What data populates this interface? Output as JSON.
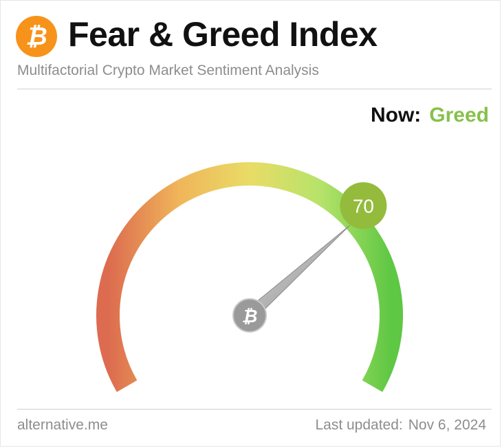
{
  "header": {
    "logo_symbol": "₿",
    "title": "Fear & Greed Index",
    "subtitle": "Multifactorial Crypto Market Sentiment Analysis"
  },
  "status": {
    "now_label": "Now:",
    "now_value": "Greed",
    "now_color": "#86c14a"
  },
  "chart_data": {
    "type": "gauge",
    "value": 70,
    "value_label": "70",
    "range": [
      0,
      100
    ],
    "badge_color": "#94bb3c",
    "gradient_colors": [
      "#dc6b4f",
      "#f0b55a",
      "#e9dc66",
      "#b6e36a",
      "#5ec743"
    ],
    "needle_symbol": "₿"
  },
  "footer": {
    "source": "alternative.me",
    "updated_label": "Last updated:",
    "updated_date": "Nov 6, 2024"
  }
}
